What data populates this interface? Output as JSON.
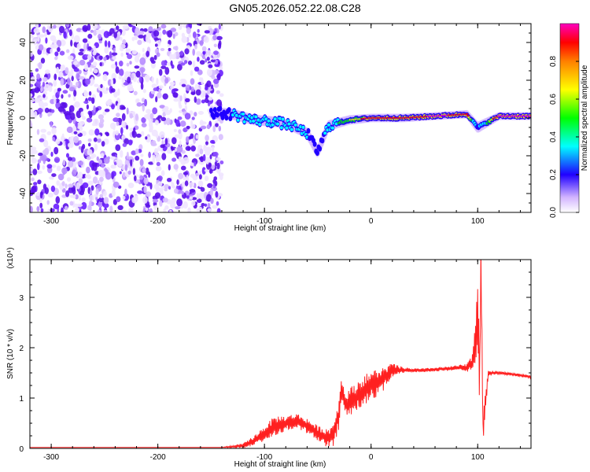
{
  "title": "GN05.2026.052.22.08.C28",
  "chart_data": [
    {
      "type": "heatmap",
      "xlabel": "Height of straight line (km)",
      "ylabel": "Frequency (Hz)",
      "xlim": [
        -320,
        150
      ],
      "ylim": [
        -50,
        50
      ],
      "xticks": [
        -300,
        -200,
        -100,
        0,
        100
      ],
      "yticks": [
        -40,
        -20,
        0,
        20,
        40
      ],
      "colorbar": {
        "label": "Normalized spectral amplitude",
        "range": [
          0,
          1
        ],
        "ticks": [
          0.0,
          0.2,
          0.4,
          0.6,
          0.8
        ],
        "colors": [
          "#ffffff",
          "#a050ff",
          "#2000ff",
          "#00ffff",
          "#00ff00",
          "#ffff00",
          "#ff0000",
          "#ff00c0"
        ]
      },
      "regions": {
        "noise": {
          "x": [
            -320,
            -140
          ],
          "f": [
            -50,
            50
          ],
          "amplitude": 0.15
        },
        "signal_track": [
          {
            "x": -150,
            "f": 3,
            "a": 0.35
          },
          {
            "x": -130,
            "f": 2,
            "a": 0.45
          },
          {
            "x": -110,
            "f": -1,
            "a": 0.5
          },
          {
            "x": -90,
            "f": -2,
            "a": 0.55
          },
          {
            "x": -75,
            "f": -4,
            "a": 0.5
          },
          {
            "x": -60,
            "f": -8,
            "a": 0.45
          },
          {
            "x": -50,
            "f": -18,
            "a": 0.3
          },
          {
            "x": -40,
            "f": -4,
            "a": 0.55
          },
          {
            "x": -20,
            "f": -1,
            "a": 0.7
          },
          {
            "x": 0,
            "f": 0,
            "a": 0.85
          },
          {
            "x": 30,
            "f": 0,
            "a": 0.85
          },
          {
            "x": 60,
            "f": 1,
            "a": 0.95
          },
          {
            "x": 90,
            "f": 2,
            "a": 0.9
          },
          {
            "x": 100,
            "f": -5,
            "a": 0.4
          },
          {
            "x": 120,
            "f": 1,
            "a": 0.95
          },
          {
            "x": 150,
            "f": 1,
            "a": 0.95
          }
        ]
      }
    },
    {
      "type": "line",
      "xlabel": "Height of straight line (km)",
      "ylabel": "SNR (10 * v/v)",
      "yscale_label": "(x10⁴)",
      "xlim": [
        -320,
        150
      ],
      "ylim": [
        0,
        3.75
      ],
      "xticks": [
        -300,
        -200,
        -100,
        0,
        100
      ],
      "yticks": [
        0,
        1,
        2,
        3
      ],
      "series": [
        {
          "color": "#ff2020",
          "x": [
            -320,
            -140,
            -120,
            -110,
            -100,
            -90,
            -80,
            -70,
            -60,
            -50,
            -40,
            -35,
            -30,
            -28,
            -25,
            -20,
            -10,
            0,
            10,
            20,
            30,
            40,
            50,
            60,
            70,
            80,
            90,
            95,
            98,
            100,
            102,
            103,
            105,
            110,
            120,
            130,
            140,
            150
          ],
          "values": [
            0.02,
            0.02,
            0.05,
            0.15,
            0.3,
            0.45,
            0.5,
            0.55,
            0.45,
            0.3,
            0.2,
            0.3,
            0.7,
            1.2,
            0.9,
            0.9,
            1.1,
            1.25,
            1.35,
            1.55,
            1.55,
            1.55,
            1.55,
            1.57,
            1.58,
            1.6,
            1.6,
            1.7,
            2.2,
            2.8,
            1.5,
            3.7,
            0.4,
            1.5,
            1.5,
            1.48,
            1.45,
            1.42
          ],
          "amplitude": [
            0,
            0,
            0.05,
            0.1,
            0.15,
            0.2,
            0.15,
            0.15,
            0.15,
            0.15,
            0.2,
            0.25,
            0.3,
            0.3,
            0.25,
            0.3,
            0.3,
            0.3,
            0.25,
            0.15,
            0.06,
            0.04,
            0.04,
            0.04,
            0.04,
            0.05,
            0.08,
            0.2,
            0.5,
            0.8,
            1.0,
            0.5,
            0.3,
            0.06,
            0.03,
            0.03,
            0.03,
            0.03
          ]
        }
      ]
    }
  ]
}
